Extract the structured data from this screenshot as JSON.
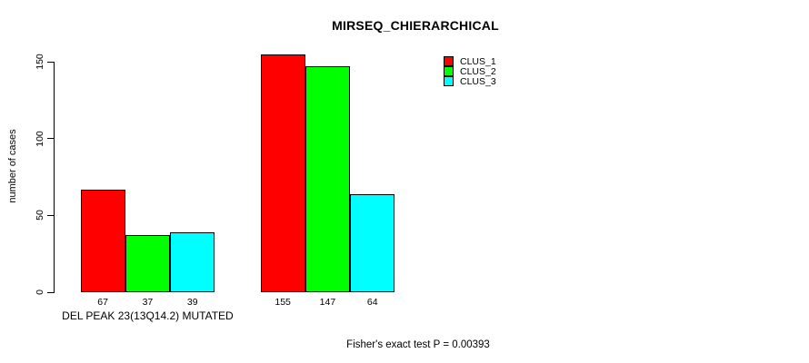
{
  "chart_data": {
    "type": "bar",
    "title": "MIRSEQ_CHIERARCHICAL",
    "categories": [
      "DEL PEAK 23(13Q14.2) MUTATED",
      ""
    ],
    "series": [
      {
        "name": "CLUS_1",
        "color": "#ff0000",
        "values": [
          67,
          155
        ]
      },
      {
        "name": "CLUS_2",
        "color": "#00ff00",
        "values": [
          37,
          147
        ]
      },
      {
        "name": "CLUS_3",
        "color": "#00ffff",
        "values": [
          39,
          64
        ]
      }
    ],
    "ylabel": "number of cases",
    "xlabel": "",
    "ylim": [
      0,
      155
    ],
    "yticks": [
      0,
      50,
      100,
      150
    ],
    "grid": false,
    "bar_value_labels": true,
    "legend_position": "top-right",
    "annotation": "Fisher's exact test P = 0.00393"
  }
}
